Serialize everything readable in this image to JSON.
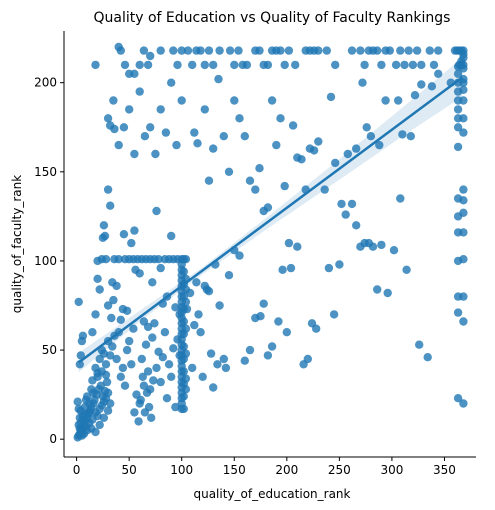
{
  "chart_data": {
    "type": "scatter",
    "title": "Quality of Education vs Quality of Faculty Rankings",
    "xlabel": "quality_of_education_rank",
    "ylabel": "quality_of_faculty_rank",
    "xlim": [
      -12,
      380
    ],
    "ylim": [
      -10,
      229
    ],
    "xticks": [
      0,
      50,
      100,
      150,
      200,
      250,
      300,
      350
    ],
    "yticks": [
      0,
      50,
      100,
      150,
      200
    ],
    "grid": false,
    "point_color": "#1f77b4",
    "regression": {
      "x_start": 2,
      "y_start": 43,
      "x_end": 367,
      "y_end": 203,
      "band": [
        {
          "x": 2,
          "lo": 37.5,
          "hi": 48.5
        },
        {
          "x": 60,
          "lo": 66.0,
          "hi": 72.0
        },
        {
          "x": 120,
          "lo": 92.5,
          "hi": 96.5
        },
        {
          "x": 180,
          "lo": 117.5,
          "hi": 124.0
        },
        {
          "x": 250,
          "lo": 145.5,
          "hi": 157.0
        },
        {
          "x": 310,
          "lo": 170.0,
          "hi": 186.0
        },
        {
          "x": 367,
          "lo": 192.0,
          "hi": 214.0
        }
      ]
    },
    "points": [
      [
        1,
        1
      ],
      [
        2,
        2
      ],
      [
        3,
        3
      ],
      [
        4,
        5
      ],
      [
        5,
        6
      ],
      [
        6,
        4
      ],
      [
        7,
        8
      ],
      [
        8,
        10
      ],
      [
        9,
        7
      ],
      [
        10,
        12
      ],
      [
        11,
        14
      ],
      [
        12,
        9
      ],
      [
        13,
        16
      ],
      [
        14,
        18
      ],
      [
        15,
        11
      ],
      [
        16,
        20
      ],
      [
        17,
        22
      ],
      [
        18,
        15
      ],
      [
        19,
        25
      ],
      [
        20,
        13
      ],
      [
        21,
        28
      ],
      [
        22,
        17
      ],
      [
        23,
        30
      ],
      [
        24,
        19
      ],
      [
        25,
        24
      ],
      [
        26,
        21
      ],
      [
        27,
        27
      ],
      [
        28,
        23
      ],
      [
        29,
        32
      ],
      [
        30,
        26
      ],
      [
        2,
        8
      ],
      [
        3,
        12
      ],
      [
        4,
        16
      ],
      [
        5,
        2
      ],
      [
        6,
        11
      ],
      [
        7,
        3
      ],
      [
        8,
        18
      ],
      [
        9,
        22
      ],
      [
        10,
        5
      ],
      [
        12,
        20
      ],
      [
        14,
        6
      ],
      [
        16,
        26
      ],
      [
        18,
        4
      ],
      [
        20,
        35
      ],
      [
        22,
        8
      ],
      [
        24,
        38
      ],
      [
        26,
        12
      ],
      [
        28,
        36
      ],
      [
        30,
        16
      ],
      [
        32,
        20
      ],
      [
        1,
        21
      ],
      [
        2,
        17
      ],
      [
        3,
        6
      ],
      [
        4,
        9
      ],
      [
        6,
        13
      ],
      [
        8,
        14
      ],
      [
        10,
        24
      ],
      [
        12,
        15
      ],
      [
        14,
        28
      ],
      [
        3,
        42
      ],
      [
        2,
        77
      ],
      [
        5,
        55
      ],
      [
        6,
        58
      ],
      [
        4,
        47
      ],
      [
        15,
        33
      ],
      [
        18,
        40
      ],
      [
        20,
        37
      ],
      [
        22,
        45
      ],
      [
        24,
        50
      ],
      [
        26,
        48
      ],
      [
        28,
        42
      ],
      [
        30,
        55
      ],
      [
        32,
        47
      ],
      [
        34,
        52
      ],
      [
        36,
        58
      ],
      [
        38,
        45
      ],
      [
        40,
        60
      ],
      [
        42,
        35
      ],
      [
        44,
        40
      ],
      [
        46,
        30
      ],
      [
        48,
        50
      ],
      [
        50,
        55
      ],
      [
        52,
        42
      ],
      [
        54,
        62
      ],
      [
        20,
        100
      ],
      [
        22,
        84
      ],
      [
        24,
        101
      ],
      [
        26,
        120
      ],
      [
        28,
        101
      ],
      [
        30,
        140
      ],
      [
        32,
        131
      ],
      [
        34,
        88
      ],
      [
        36,
        101
      ],
      [
        38,
        86
      ],
      [
        40,
        101
      ],
      [
        42,
        67
      ],
      [
        44,
        73
      ],
      [
        46,
        101
      ],
      [
        48,
        72
      ],
      [
        50,
        101
      ],
      [
        52,
        110
      ],
      [
        54,
        101
      ],
      [
        56,
        95
      ],
      [
        58,
        101
      ],
      [
        60,
        93
      ],
      [
        62,
        101
      ],
      [
        64,
        66
      ],
      [
        66,
        101
      ],
      [
        68,
        63
      ],
      [
        70,
        101
      ],
      [
        72,
        88
      ],
      [
        74,
        101
      ],
      [
        76,
        128
      ],
      [
        78,
        101
      ],
      [
        80,
        96
      ],
      [
        82,
        76
      ],
      [
        84,
        101
      ],
      [
        86,
        80
      ],
      [
        88,
        101
      ],
      [
        90,
        114
      ],
      [
        92,
        101
      ],
      [
        94,
        74
      ],
      [
        96,
        101
      ],
      [
        98,
        70
      ],
      [
        15,
        60
      ],
      [
        18,
        70
      ],
      [
        20,
        90
      ],
      [
        25,
        113
      ],
      [
        27,
        114
      ],
      [
        30,
        75
      ],
      [
        33,
        68
      ],
      [
        35,
        78
      ],
      [
        45,
        115
      ],
      [
        55,
        117
      ],
      [
        60,
        20
      ],
      [
        62,
        45
      ],
      [
        64,
        30
      ],
      [
        66,
        53
      ],
      [
        68,
        38
      ],
      [
        70,
        28
      ],
      [
        72,
        57
      ],
      [
        74,
        65
      ],
      [
        76,
        40
      ],
      [
        78,
        49
      ],
      [
        80,
        32
      ],
      [
        82,
        46
      ],
      [
        84,
        60
      ],
      [
        86,
        23
      ],
      [
        88,
        42
      ],
      [
        90,
        35
      ],
      [
        92,
        51
      ],
      [
        94,
        18
      ],
      [
        96,
        56
      ],
      [
        98,
        47
      ],
      [
        55,
        15
      ],
      [
        57,
        25
      ],
      [
        59,
        10
      ],
      [
        61,
        22
      ],
      [
        63,
        35
      ],
      [
        65,
        15
      ],
      [
        67,
        26
      ],
      [
        69,
        18
      ],
      [
        71,
        12
      ],
      [
        73,
        33
      ],
      [
        100,
        101
      ],
      [
        100,
        98
      ],
      [
        100,
        95
      ],
      [
        100,
        92
      ],
      [
        100,
        89
      ],
      [
        100,
        86
      ],
      [
        100,
        83
      ],
      [
        100,
        80
      ],
      [
        100,
        77
      ],
      [
        100,
        74
      ],
      [
        100,
        71
      ],
      [
        100,
        68
      ],
      [
        100,
        65
      ],
      [
        100,
        62
      ],
      [
        100,
        59
      ],
      [
        100,
        56
      ],
      [
        100,
        53
      ],
      [
        100,
        50
      ],
      [
        100,
        47
      ],
      [
        100,
        44
      ],
      [
        100,
        41
      ],
      [
        100,
        38
      ],
      [
        100,
        35
      ],
      [
        100,
        32
      ],
      [
        100,
        29
      ],
      [
        100,
        26
      ],
      [
        100,
        23
      ],
      [
        100,
        20
      ],
      [
        100,
        17
      ],
      [
        102,
        101
      ],
      [
        102,
        94
      ],
      [
        102,
        87
      ],
      [
        102,
        80
      ],
      [
        102,
        73
      ],
      [
        102,
        66
      ],
      [
        102,
        59
      ],
      [
        102,
        52
      ],
      [
        102,
        45
      ],
      [
        102,
        38
      ],
      [
        102,
        31
      ],
      [
        102,
        24
      ],
      [
        102,
        17
      ],
      [
        104,
        101
      ],
      [
        104,
        90
      ],
      [
        104,
        84
      ],
      [
        104,
        77
      ],
      [
        104,
        62
      ],
      [
        104,
        48
      ],
      [
        104,
        34
      ],
      [
        104,
        28
      ],
      [
        105,
        73
      ],
      [
        108,
        82
      ],
      [
        110,
        40
      ],
      [
        112,
        64
      ],
      [
        114,
        88
      ],
      [
        116,
        70
      ],
      [
        118,
        60
      ],
      [
        120,
        35
      ],
      [
        122,
        86
      ],
      [
        124,
        84
      ],
      [
        126,
        83
      ],
      [
        128,
        48
      ],
      [
        130,
        29
      ],
      [
        132,
        98
      ],
      [
        134,
        42
      ],
      [
        136,
        75
      ],
      [
        140,
        45
      ],
      [
        142,
        40
      ],
      [
        145,
        92
      ],
      [
        150,
        106
      ],
      [
        155,
        103
      ],
      [
        160,
        44
      ],
      [
        165,
        50
      ],
      [
        170,
        68
      ],
      [
        175,
        69
      ],
      [
        178,
        76
      ],
      [
        182,
        47
      ],
      [
        186,
        52
      ],
      [
        192,
        66
      ],
      [
        196,
        95
      ],
      [
        200,
        60
      ],
      [
        204,
        96
      ],
      [
        210,
        108
      ],
      [
        216,
        42
      ],
      [
        220,
        45
      ],
      [
        224,
        65
      ],
      [
        228,
        62
      ],
      [
        240,
        96
      ],
      [
        245,
        70
      ],
      [
        250,
        98
      ],
      [
        256,
        126
      ],
      [
        262,
        132
      ],
      [
        266,
        120
      ],
      [
        270,
        108
      ],
      [
        274,
        110
      ],
      [
        278,
        110
      ],
      [
        282,
        108
      ],
      [
        286,
        84
      ],
      [
        290,
        109
      ],
      [
        296,
        82
      ],
      [
        302,
        106
      ],
      [
        308,
        135
      ],
      [
        314,
        95
      ],
      [
        326,
        53
      ],
      [
        334,
        46
      ],
      [
        112,
        172
      ],
      [
        115,
        166
      ],
      [
        122,
        185
      ],
      [
        126,
        145
      ],
      [
        130,
        163
      ],
      [
        135,
        202
      ],
      [
        140,
        170
      ],
      [
        145,
        150
      ],
      [
        150,
        190
      ],
      [
        155,
        180
      ],
      [
        160,
        170
      ],
      [
        165,
        145
      ],
      [
        170,
        140
      ],
      [
        174,
        152
      ],
      [
        178,
        128
      ],
      [
        182,
        130
      ],
      [
        186,
        190
      ],
      [
        190,
        165
      ],
      [
        194,
        180
      ],
      [
        198,
        142
      ],
      [
        202,
        110
      ],
      [
        206,
        176
      ],
      [
        210,
        158
      ],
      [
        214,
        157
      ],
      [
        218,
        140
      ],
      [
        222,
        163
      ],
      [
        226,
        162
      ],
      [
        230,
        167
      ],
      [
        236,
        140
      ],
      [
        242,
        192
      ],
      [
        246,
        155
      ],
      [
        252,
        132
      ],
      [
        258,
        160
      ],
      [
        266,
        163
      ],
      [
        272,
        200
      ],
      [
        276,
        175
      ],
      [
        280,
        170
      ],
      [
        288,
        165
      ],
      [
        294,
        190
      ],
      [
        306,
        190
      ],
      [
        310,
        171
      ],
      [
        318,
        170
      ],
      [
        322,
        193
      ],
      [
        328,
        199
      ],
      [
        338,
        198
      ],
      [
        344,
        205
      ],
      [
        356,
        200
      ],
      [
        30,
        180
      ],
      [
        35,
        190
      ],
      [
        40,
        165
      ],
      [
        45,
        175
      ],
      [
        50,
        185
      ],
      [
        55,
        160
      ],
      [
        60,
        195
      ],
      [
        65,
        170
      ],
      [
        70,
        175
      ],
      [
        75,
        160
      ],
      [
        80,
        185
      ],
      [
        85,
        172
      ],
      [
        90,
        200
      ],
      [
        95,
        165
      ],
      [
        100,
        190
      ],
      [
        50,
        205
      ],
      [
        60,
        210
      ],
      [
        70,
        215
      ],
      [
        40,
        220
      ],
      [
        55,
        205
      ],
      [
        32,
        176
      ],
      [
        36,
        174
      ],
      [
        18,
        210
      ],
      [
        42,
        218
      ],
      [
        46,
        210
      ],
      [
        64,
        218
      ],
      [
        68,
        210
      ],
      [
        80,
        218
      ],
      [
        92,
        218
      ],
      [
        96,
        210
      ],
      [
        100,
        218
      ],
      [
        106,
        218
      ],
      [
        110,
        210
      ],
      [
        114,
        218
      ],
      [
        118,
        218
      ],
      [
        122,
        210
      ],
      [
        126,
        218
      ],
      [
        130,
        210
      ],
      [
        136,
        218
      ],
      [
        146,
        218
      ],
      [
        150,
        210
      ],
      [
        154,
        218
      ],
      [
        158,
        210
      ],
      [
        162,
        210
      ],
      [
        170,
        218
      ],
      [
        174,
        218
      ],
      [
        178,
        210
      ],
      [
        182,
        210
      ],
      [
        186,
        218
      ],
      [
        190,
        218
      ],
      [
        194,
        218
      ],
      [
        198,
        210
      ],
      [
        202,
        218
      ],
      [
        208,
        210
      ],
      [
        218,
        218
      ],
      [
        222,
        218
      ],
      [
        226,
        218
      ],
      [
        230,
        218
      ],
      [
        238,
        218
      ],
      [
        246,
        210
      ],
      [
        262,
        218
      ],
      [
        270,
        218
      ],
      [
        274,
        210
      ],
      [
        278,
        218
      ],
      [
        282,
        218
      ],
      [
        286,
        218
      ],
      [
        290,
        210
      ],
      [
        294,
        218
      ],
      [
        298,
        218
      ],
      [
        304,
        210
      ],
      [
        308,
        218
      ],
      [
        312,
        210
      ],
      [
        316,
        218
      ],
      [
        320,
        210
      ],
      [
        324,
        218
      ],
      [
        328,
        210
      ],
      [
        336,
        218
      ],
      [
        340,
        210
      ],
      [
        344,
        218
      ],
      [
        360,
        218
      ],
      [
        362,
        218
      ],
      [
        364,
        218
      ],
      [
        366,
        218
      ],
      [
        368,
        218
      ],
      [
        368,
        216
      ],
      [
        368,
        214
      ],
      [
        366,
        212
      ],
      [
        368,
        210
      ],
      [
        366,
        210
      ],
      [
        364,
        210
      ],
      [
        368,
        208
      ],
      [
        368,
        190
      ],
      [
        368,
        196
      ],
      [
        368,
        200
      ],
      [
        368,
        202
      ],
      [
        368,
        180
      ],
      [
        368,
        172
      ],
      [
        368,
        140
      ],
      [
        368,
        134
      ],
      [
        368,
        127
      ],
      [
        368,
        116
      ],
      [
        368,
        101
      ],
      [
        368,
        80
      ],
      [
        368,
        66
      ],
      [
        368,
        20
      ],
      [
        363,
        209
      ],
      [
        363,
        205
      ],
      [
        363,
        200
      ],
      [
        363,
        190
      ],
      [
        363,
        185
      ],
      [
        363,
        135
      ],
      [
        363,
        125
      ],
      [
        363,
        116
      ],
      [
        363,
        100
      ],
      [
        363,
        80
      ],
      [
        363,
        71
      ],
      [
        363,
        23
      ],
      [
        363,
        164
      ],
      [
        363,
        175
      ],
      [
        363,
        180
      ],
      [
        363,
        195
      ]
    ]
  }
}
